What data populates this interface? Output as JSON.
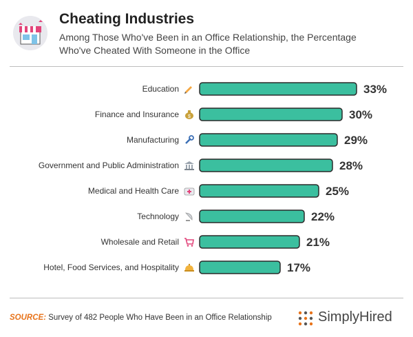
{
  "header": {
    "title": "Cheating Industries",
    "subtitle": "Among Those Who've Been in an Office Relationship, the Percentage Who've Cheated With Someone in the Office"
  },
  "colors": {
    "bar": "#3bbf9f",
    "bar_stroke": "#2a2a2a",
    "value_text": "#333333",
    "source_accent": "#e8731a"
  },
  "chart_data": {
    "type": "bar",
    "orientation": "horizontal",
    "title": "Cheating Industries",
    "subtitle": "Among Those Who've Been in an Office Relationship, the Percentage Who've Cheated With Someone in the Office",
    "xlabel": "",
    "ylabel": "",
    "xlim": [
      0,
      33
    ],
    "categories": [
      "Education",
      "Finance and Insurance",
      "Manufacturing",
      "Government and Public Administration",
      "Medical and Health Care",
      "Technology",
      "Wholesale and Retail",
      "Hotel, Food Services, and Hospitality"
    ],
    "values": [
      33,
      30,
      29,
      28,
      25,
      22,
      21,
      17
    ],
    "value_labels": [
      "33%",
      "30%",
      "29%",
      "28%",
      "25%",
      "22%",
      "21%",
      "17%"
    ],
    "category_icons": [
      "pencil-icon",
      "money-bag-icon",
      "wrench-icon",
      "government-building-icon",
      "medical-kit-icon",
      "satellite-dish-icon",
      "shopping-cart-icon",
      "service-bell-icon"
    ]
  },
  "footer": {
    "source_label": "SOURCE:",
    "source_text": " Survey of 482 People Who Have Been in an Office Relationship"
  },
  "brand": {
    "name": "SimplyHired"
  }
}
